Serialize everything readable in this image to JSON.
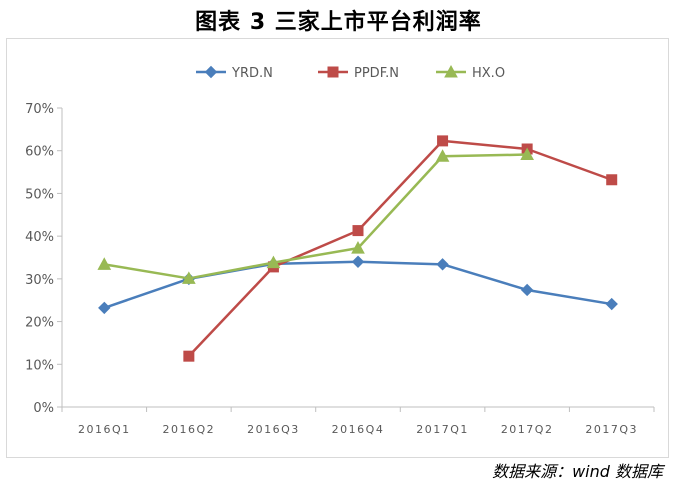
{
  "title": "图表 3 三家上市平台利润率",
  "source": "数据来源：wind 数据库",
  "chart_data": {
    "type": "line",
    "categories": [
      "2016Q1",
      "2016Q2",
      "2016Q3",
      "2016Q4",
      "2017Q1",
      "2017Q2",
      "2017Q3"
    ],
    "series": [
      {
        "name": "YRD.N",
        "color": "#4a7ebb",
        "marker": "diamond",
        "values": [
          23.2,
          30.0,
          33.5,
          34.0,
          33.4,
          27.4,
          24.1
        ]
      },
      {
        "name": "PPDF.N",
        "color": "#be4b48",
        "marker": "square",
        "values": [
          null,
          11.9,
          32.8,
          41.3,
          62.3,
          60.4,
          53.2
        ]
      },
      {
        "name": "HX.O",
        "color": "#98b954",
        "marker": "triangle",
        "values": [
          33.4,
          30.1,
          33.8,
          37.2,
          58.7,
          59.1,
          null
        ]
      }
    ],
    "ylim": [
      0,
      70
    ],
    "yticks": [
      "0%",
      "10%",
      "20%",
      "30%",
      "40%",
      "50%",
      "60%",
      "70%"
    ],
    "legend": "top",
    "grid": false
  }
}
